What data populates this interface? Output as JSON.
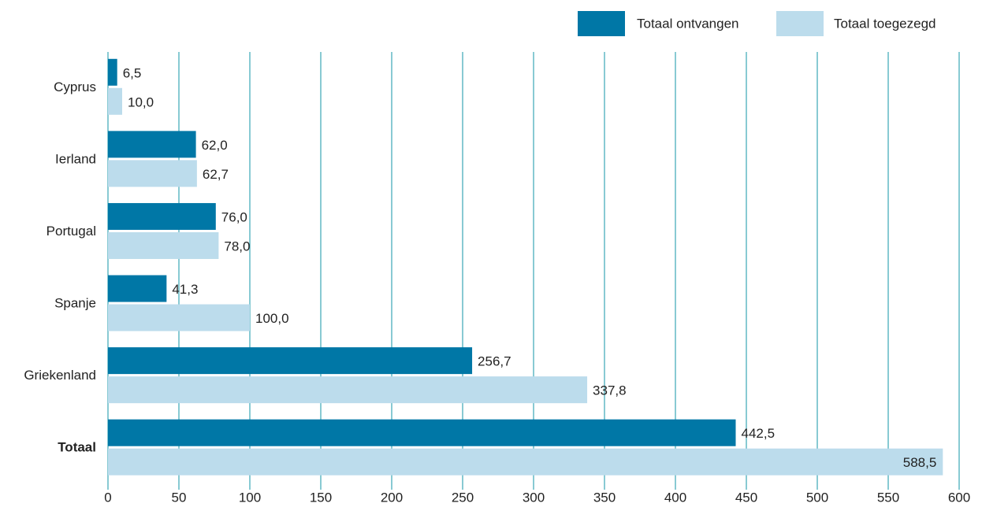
{
  "chart_data": {
    "type": "barh",
    "categories": [
      "Cyprus",
      "Ierland",
      "Portugal",
      "Spanje",
      "Griekenland",
      "Totaal"
    ],
    "series": [
      {
        "name": "Totaal ontvangen",
        "color": "#0077a6",
        "values": [
          6.5,
          62.0,
          76.0,
          41.3,
          256.7,
          442.5
        ],
        "value_labels": [
          "6,5",
          "62,0",
          "76,0",
          "41,3",
          "256,7",
          "442,5"
        ]
      },
      {
        "name": "Totaal toegezegd",
        "color": "#bcdcec",
        "values": [
          10.0,
          62.7,
          78.0,
          100.0,
          337.8,
          588.5
        ],
        "value_labels": [
          "10,0",
          "62,7",
          "78,0",
          "100,0",
          "337,8",
          "588,5"
        ]
      }
    ],
    "xlim": [
      0,
      600
    ],
    "xticks": [
      0,
      50,
      100,
      150,
      200,
      250,
      300,
      350,
      400,
      450,
      500,
      550,
      600
    ],
    "grid": true,
    "legend": "top-right"
  }
}
